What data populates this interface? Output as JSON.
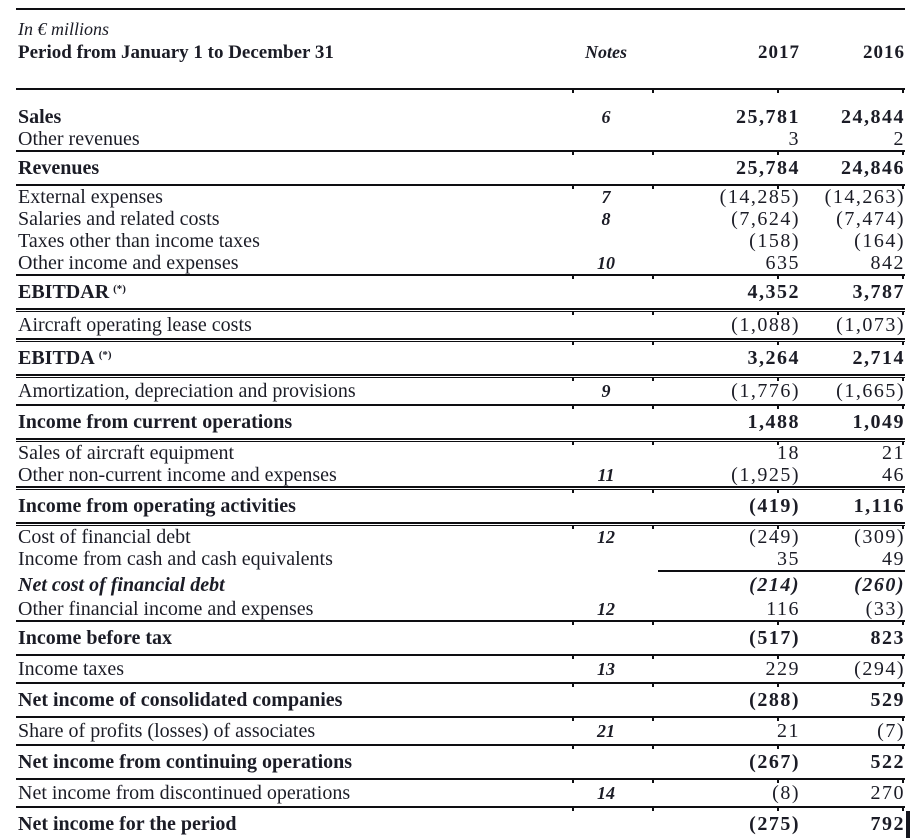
{
  "document": {
    "unit_note": "In € millions",
    "period_label": "Period from January 1 to December 31",
    "columns": {
      "notes": "Notes",
      "y2017": "2017",
      "y2016": "2016"
    },
    "footnote_marker": "(*)",
    "text_color": "#1b1c26",
    "rule_color": "#0e0e12",
    "rows": [
      {
        "label": "Sales",
        "note": "6",
        "v2017": "25,781",
        "v2016": "24,844",
        "em": "bold",
        "type": "regular",
        "rule": "none"
      },
      {
        "label": "Other revenues",
        "note": "",
        "v2017": "3",
        "v2016": "2",
        "em": "normal",
        "type": "regular",
        "rule": "full"
      },
      {
        "label": "Revenues",
        "note": "",
        "v2017": "25,784",
        "v2016": "24,846",
        "em": "bold",
        "type": "total",
        "rule": "full"
      },
      {
        "label": "External expenses",
        "note": "7",
        "v2017": "(14,285)",
        "v2016": "(14,263)",
        "em": "normal",
        "type": "regular",
        "rule": "none"
      },
      {
        "label": "Salaries and related costs",
        "note": "8",
        "v2017": "(7,624)",
        "v2016": "(7,474)",
        "em": "normal",
        "type": "regular",
        "rule": "none"
      },
      {
        "label": "Taxes other than income taxes",
        "note": "",
        "v2017": "(158)",
        "v2016": "(164)",
        "em": "normal",
        "type": "regular",
        "rule": "none"
      },
      {
        "label": "Other income and expenses",
        "note": "10",
        "v2017": "635",
        "v2016": "842",
        "em": "normal",
        "type": "regular",
        "rule": "full"
      },
      {
        "label": "EBITDAR",
        "sup": "(*)",
        "note": "",
        "v2017": "4,352",
        "v2016": "3,787",
        "em": "bold",
        "type": "total",
        "rule": "double"
      },
      {
        "label": "Aircraft operating lease costs",
        "note": "",
        "v2017": "(1,088)",
        "v2016": "(1,073)",
        "em": "normal",
        "type": "solo",
        "rule": "double"
      },
      {
        "label": "EBITDA",
        "sup": "(*)",
        "note": "",
        "v2017": "3,264",
        "v2016": "2,714",
        "em": "bold",
        "type": "total",
        "rule": "double"
      },
      {
        "label": "Amortization, depreciation and provisions",
        "note": "9",
        "v2017": "(1,776)",
        "v2016": "(1,665)",
        "em": "normal",
        "type": "solo",
        "rule": "full"
      },
      {
        "label": "Income from current operations",
        "note": "",
        "v2017": "1,488",
        "v2016": "1,049",
        "em": "bold",
        "type": "total",
        "rule": "double"
      },
      {
        "label": "Sales of aircraft equipment",
        "note": "",
        "v2017": "18",
        "v2016": "21",
        "em": "normal",
        "type": "regular",
        "rule": "none"
      },
      {
        "label": "Other non-current income and expenses",
        "note": "11",
        "v2017": "(1,925)",
        "v2016": "46",
        "em": "normal",
        "type": "regular",
        "rule": "double"
      },
      {
        "label": "Income from operating activities",
        "note": "",
        "v2017": "(419)",
        "v2016": "1,116",
        "em": "bold",
        "type": "total",
        "rule": "double"
      },
      {
        "label": "Cost of financial debt",
        "note": "12",
        "v2017": "(249)",
        "v2016": "(309)",
        "em": "normal",
        "type": "regular",
        "rule": "none"
      },
      {
        "label": "Income from cash and cash equivalents",
        "note": "",
        "v2017": "35",
        "v2016": "49",
        "em": "normal",
        "type": "regular",
        "rule": "partial"
      },
      {
        "label": "Net cost of financial debt",
        "note": "",
        "v2017": "(214)",
        "v2016": "(260)",
        "em": "bold-italic",
        "type": "solo",
        "rule": "none"
      },
      {
        "label": "Other financial income and expenses",
        "note": "12",
        "v2017": "116",
        "v2016": "(33)",
        "em": "normal",
        "type": "regular",
        "rule": "full"
      },
      {
        "label": "Income before tax",
        "note": "",
        "v2017": "(517)",
        "v2016": "823",
        "em": "bold",
        "type": "total",
        "rule": "full"
      },
      {
        "label": "Income taxes",
        "note": "13",
        "v2017": "229",
        "v2016": "(294)",
        "em": "normal",
        "type": "solo",
        "rule": "full"
      },
      {
        "label": "Net income of consolidated companies",
        "note": "",
        "v2017": "(288)",
        "v2016": "529",
        "em": "bold",
        "type": "total",
        "rule": "full"
      },
      {
        "label": "Share of profits (losses) of associates",
        "note": "21",
        "v2017": "21",
        "v2016": "(7)",
        "em": "normal",
        "type": "solo",
        "rule": "full"
      },
      {
        "label": "Net income from continuing operations",
        "note": "",
        "v2017": "(267)",
        "v2016": "522",
        "em": "bold",
        "type": "total",
        "rule": "full"
      },
      {
        "label": "Net income from discontinued operations",
        "note": "14",
        "v2017": "(8)",
        "v2016": "270",
        "em": "normal",
        "type": "solo",
        "rule": "full"
      },
      {
        "label": "Net income for the period",
        "note": "",
        "v2017": "(275)",
        "v2016": "792",
        "em": "bold",
        "type": "total",
        "rule": "none",
        "cursor": true
      }
    ]
  }
}
